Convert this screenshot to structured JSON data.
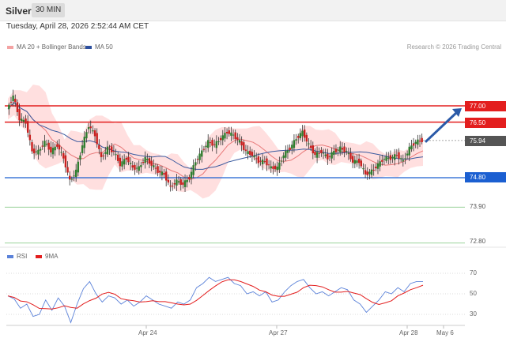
{
  "header": {
    "title": "Silver",
    "timeframe": "30 MIN"
  },
  "timestamp": "Tuesday, April 28, 2026 2:52:44 AM CET",
  "legend": {
    "bb_label": "MA 20 + Bollinger Bands",
    "ma50_label": "MA 50",
    "rsi_label": "RSI",
    "ma9_label": "9MA"
  },
  "credit": "Research © 2026 Trading Central",
  "levels": {
    "r2": "77.00",
    "r1": "76.50",
    "last": "75.94",
    "s1": "74.80",
    "s2": "73.90",
    "s3": "72.80"
  },
  "rsi_axis": {
    "t70": "70",
    "t50": "50",
    "t30": "30"
  },
  "dates": {
    "d1": "Apr 24",
    "d2": "Apr 27",
    "d3": "Apr 28",
    "d4": "May 6"
  },
  "colors": {
    "resistance": "#e31e1e",
    "support": "#1b5fd1",
    "bollinger": "#ffd9d9",
    "ma50": "#3a5a9f",
    "ma20": "#e87878",
    "candle_up": "#2f7d2f",
    "candle_down": "#c8201f",
    "rsi": "#5b82d9",
    "rsi_ma": "#e31e1e",
    "arrow": "#2b5aa8"
  },
  "icons": {
    "forecast_arrow": "arrow-up-right-icon"
  },
  "chart_data": {
    "type": "candlestick",
    "y_range_price": [
      72.4,
      78.2
    ],
    "price_levels": {
      "resistance": [
        77.0,
        76.5
      ],
      "support": [
        74.8,
        73.9,
        72.8
      ],
      "last": 75.94
    },
    "close_path": [
      76.9,
      77.3,
      76.6,
      76.5,
      75.6,
      75.6,
      75.9,
      75.6,
      75.8,
      75.4,
      74.7,
      75.0,
      75.8,
      76.4,
      76.1,
      75.4,
      75.7,
      75.6,
      75.2,
      75.4,
      75.1,
      75.1,
      75.4,
      75.2,
      75.0,
      74.9,
      74.5,
      74.7,
      74.6,
      74.8,
      75.3,
      75.6,
      75.9,
      75.8,
      76.0,
      76.2,
      76.1,
      75.9,
      75.6,
      75.5,
      75.3,
      75.3,
      75.1,
      75.1,
      75.5,
      75.7,
      76.0,
      76.2,
      75.8,
      75.5,
      75.6,
      75.4,
      75.6,
      75.7,
      75.6,
      75.3,
      75.3,
      74.9,
      75.0,
      75.2,
      75.4,
      75.4,
      75.5,
      75.3,
      75.7,
      75.9,
      75.94
    ],
    "rsi_range": [
      20,
      80
    ],
    "rsi_values": [
      48,
      45,
      36,
      40,
      28,
      30,
      44,
      34,
      46,
      38,
      22,
      40,
      55,
      62,
      50,
      42,
      48,
      46,
      40,
      44,
      38,
      42,
      48,
      44,
      40,
      38,
      36,
      42,
      40,
      44,
      56,
      60,
      66,
      62,
      64,
      66,
      60,
      58,
      50,
      52,
      48,
      52,
      42,
      44,
      52,
      58,
      62,
      64,
      56,
      50,
      52,
      48,
      52,
      56,
      54,
      44,
      40,
      32,
      38,
      44,
      52,
      50,
      56,
      52,
      60,
      62,
      62
    ]
  }
}
